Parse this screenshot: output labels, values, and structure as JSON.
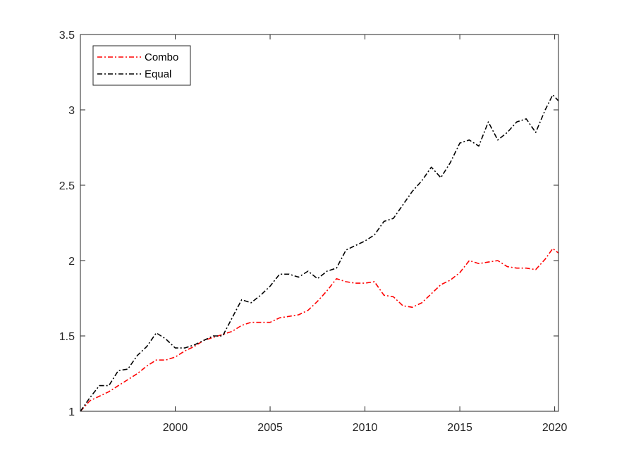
{
  "chart_data": {
    "type": "line",
    "title": "",
    "xlabel": "",
    "ylabel": "",
    "xlim": [
      1995,
      2020.2
    ],
    "ylim": [
      1,
      3.5
    ],
    "xticks": [
      2000,
      2005,
      2010,
      2015,
      2020
    ],
    "xtick_labels": [
      "2000",
      "2005",
      "2010",
      "2015",
      "2020"
    ],
    "yticks": [
      1,
      1.5,
      2,
      2.5,
      3,
      3.5
    ],
    "ytick_labels": [
      "1",
      "1.5",
      "2",
      "2.5",
      "3",
      "3.5"
    ],
    "grid": false,
    "legend": {
      "position": "top-left",
      "entries": [
        "Combo",
        "Equal"
      ]
    },
    "series": [
      {
        "name": "Combo",
        "color": "#ff0000",
        "style": "dash-dot",
        "points": [
          [
            1995.0,
            1.0
          ],
          [
            1995.5,
            1.07
          ],
          [
            1996.0,
            1.1
          ],
          [
            1996.5,
            1.13
          ],
          [
            1997.0,
            1.17
          ],
          [
            1997.5,
            1.21
          ],
          [
            1998.0,
            1.25
          ],
          [
            1998.5,
            1.3
          ],
          [
            1999.0,
            1.34
          ],
          [
            1999.5,
            1.34
          ],
          [
            2000.0,
            1.36
          ],
          [
            2000.5,
            1.4
          ],
          [
            2001.0,
            1.43
          ],
          [
            2001.5,
            1.47
          ],
          [
            2002.0,
            1.49
          ],
          [
            2002.5,
            1.51
          ],
          [
            2003.0,
            1.53
          ],
          [
            2003.5,
            1.57
          ],
          [
            2004.0,
            1.59
          ],
          [
            2004.5,
            1.59
          ],
          [
            2005.0,
            1.59
          ],
          [
            2005.5,
            1.62
          ],
          [
            2006.0,
            1.63
          ],
          [
            2006.5,
            1.64
          ],
          [
            2007.0,
            1.67
          ],
          [
            2007.5,
            1.73
          ],
          [
            2008.0,
            1.8
          ],
          [
            2008.5,
            1.88
          ],
          [
            2009.0,
            1.86
          ],
          [
            2009.5,
            1.85
          ],
          [
            2010.0,
            1.85
          ],
          [
            2010.5,
            1.86
          ],
          [
            2011.0,
            1.77
          ],
          [
            2011.5,
            1.76
          ],
          [
            2012.0,
            1.7
          ],
          [
            2012.5,
            1.69
          ],
          [
            2013.0,
            1.72
          ],
          [
            2013.5,
            1.78
          ],
          [
            2014.0,
            1.84
          ],
          [
            2014.5,
            1.87
          ],
          [
            2015.0,
            1.92
          ],
          [
            2015.5,
            2.0
          ],
          [
            2016.0,
            1.98
          ],
          [
            2016.5,
            1.99
          ],
          [
            2017.0,
            2.0
          ],
          [
            2017.5,
            1.96
          ],
          [
            2018.0,
            1.95
          ],
          [
            2018.5,
            1.95
          ],
          [
            2019.0,
            1.94
          ],
          [
            2019.5,
            2.01
          ],
          [
            2019.9,
            2.08
          ],
          [
            2020.2,
            2.05
          ]
        ]
      },
      {
        "name": "Equal",
        "color": "#000000",
        "style": "dash-dot",
        "points": [
          [
            1995.0,
            1.0
          ],
          [
            1995.5,
            1.09
          ],
          [
            1996.0,
            1.17
          ],
          [
            1996.5,
            1.17
          ],
          [
            1997.0,
            1.27
          ],
          [
            1997.5,
            1.28
          ],
          [
            1998.0,
            1.37
          ],
          [
            1998.5,
            1.43
          ],
          [
            1999.0,
            1.52
          ],
          [
            1999.5,
            1.48
          ],
          [
            2000.0,
            1.42
          ],
          [
            2000.5,
            1.42
          ],
          [
            2001.0,
            1.44
          ],
          [
            2001.5,
            1.47
          ],
          [
            2002.0,
            1.5
          ],
          [
            2002.5,
            1.5
          ],
          [
            2003.0,
            1.62
          ],
          [
            2003.5,
            1.74
          ],
          [
            2004.0,
            1.72
          ],
          [
            2004.5,
            1.77
          ],
          [
            2005.0,
            1.83
          ],
          [
            2005.5,
            1.91
          ],
          [
            2006.0,
            1.91
          ],
          [
            2006.5,
            1.89
          ],
          [
            2007.0,
            1.93
          ],
          [
            2007.5,
            1.88
          ],
          [
            2008.0,
            1.93
          ],
          [
            2008.5,
            1.95
          ],
          [
            2009.0,
            2.07
          ],
          [
            2009.5,
            2.1
          ],
          [
            2010.0,
            2.13
          ],
          [
            2010.5,
            2.17
          ],
          [
            2011.0,
            2.26
          ],
          [
            2011.5,
            2.28
          ],
          [
            2012.0,
            2.37
          ],
          [
            2012.5,
            2.46
          ],
          [
            2013.0,
            2.53
          ],
          [
            2013.5,
            2.62
          ],
          [
            2014.0,
            2.55
          ],
          [
            2014.5,
            2.65
          ],
          [
            2015.0,
            2.78
          ],
          [
            2015.5,
            2.8
          ],
          [
            2016.0,
            2.76
          ],
          [
            2016.5,
            2.92
          ],
          [
            2017.0,
            2.8
          ],
          [
            2017.5,
            2.85
          ],
          [
            2018.0,
            2.92
          ],
          [
            2018.5,
            2.94
          ],
          [
            2019.0,
            2.85
          ],
          [
            2019.5,
            3.0
          ],
          [
            2019.9,
            3.1
          ],
          [
            2020.2,
            3.06
          ]
        ]
      }
    ]
  }
}
